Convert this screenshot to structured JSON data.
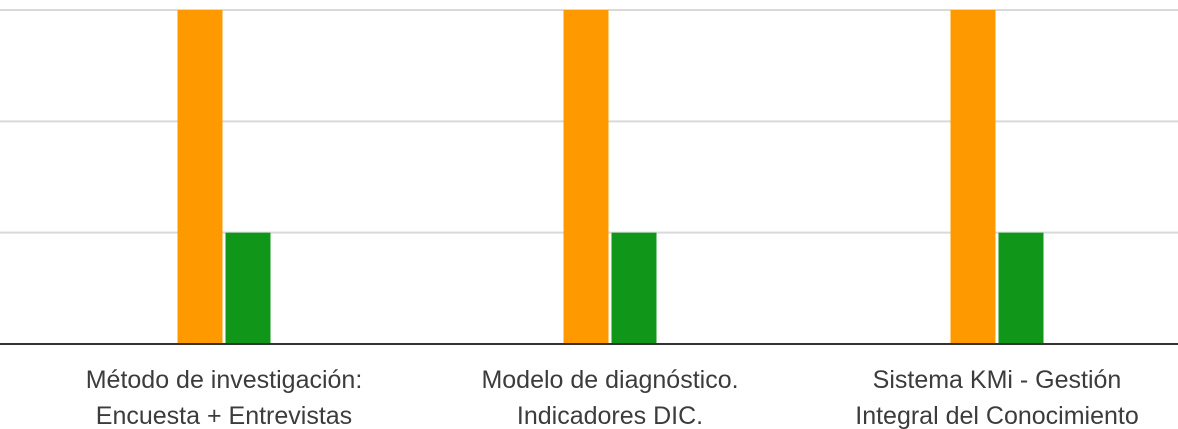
{
  "chart_data": {
    "type": "bar",
    "categories": [
      [
        "Método de investigación:",
        "Encuesta + Entrevistas"
      ],
      [
        "Modelo de diagnóstico.",
        "Indicadores DIC."
      ],
      [
        "Sistema KMi - Gestión",
        "Integral del Conocimiento"
      ]
    ],
    "series": [
      {
        "color": "#ff9900",
        "values": [
          3,
          3,
          3
        ]
      },
      {
        "color": "#109618",
        "values": [
          1,
          1,
          1
        ]
      }
    ],
    "ylim": [
      0,
      3
    ],
    "gridlines": [
      1,
      2,
      3
    ],
    "grid": true,
    "legend": "none",
    "title": "",
    "xlabel": "",
    "ylabel": ""
  }
}
